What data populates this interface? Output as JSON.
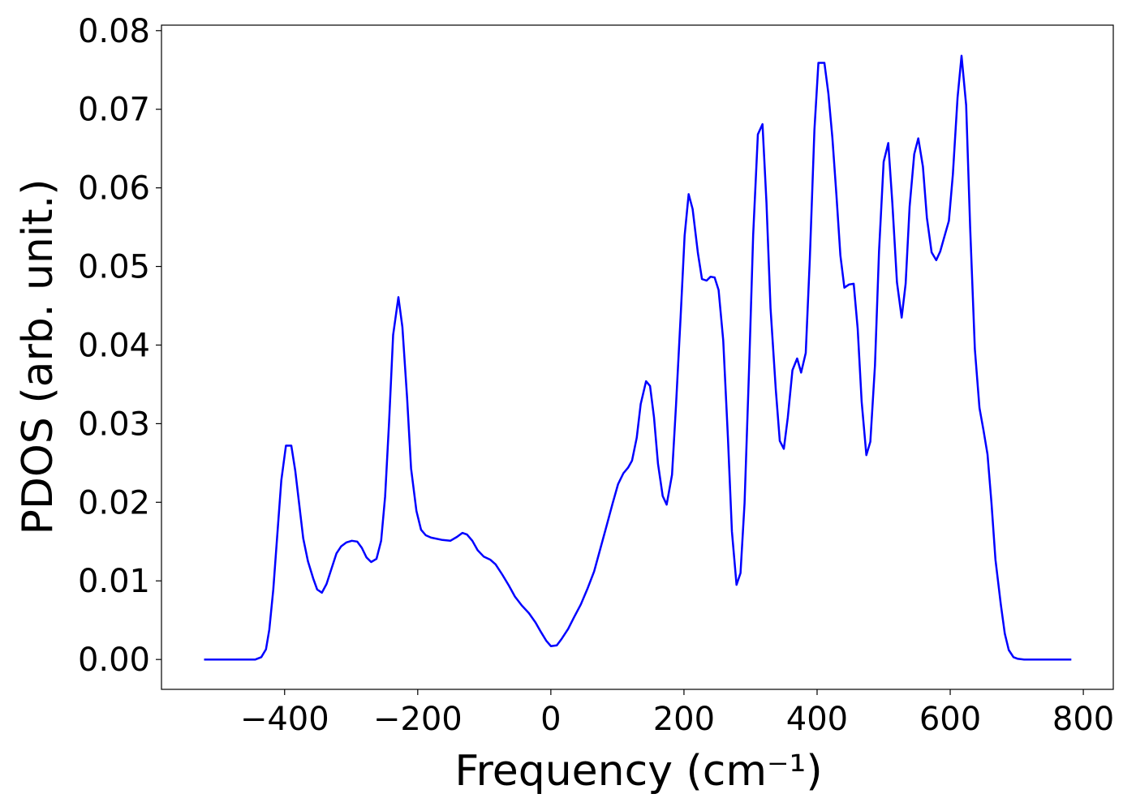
{
  "chart_data": {
    "type": "line",
    "xlabel": "Frequency (cm⁻¹)",
    "ylabel": "PDOS (arb. unit.)",
    "xlim": [
      -585,
      845
    ],
    "ylim": [
      -0.0038,
      0.0807
    ],
    "xticks": [
      {
        "value": -400,
        "label": "−400"
      },
      {
        "value": -200,
        "label": "−200"
      },
      0,
      200,
      400,
      600,
      800
    ],
    "yticks": [
      {
        "value": 0,
        "label": "0.00"
      },
      {
        "value": 0.01,
        "label": "0.01"
      },
      {
        "value": 0.02,
        "label": "0.02"
      },
      {
        "value": 0.03,
        "label": "0.03"
      },
      {
        "value": 0.04,
        "label": "0.04"
      },
      {
        "value": 0.05,
        "label": "0.05"
      },
      {
        "value": 0.06,
        "label": "0.06"
      },
      {
        "value": 0.07,
        "label": "0.07"
      },
      {
        "value": 0.08,
        "label": "0.08"
      }
    ],
    "grid": false,
    "series": [
      {
        "color": "#0000ff",
        "x": [
          -521,
          -444,
          -435,
          -428,
          -423,
          -417,
          -411,
          -405,
          -398,
          -390,
          -384,
          -378,
          -372,
          -365,
          -357,
          -351,
          -344,
          -337,
          -329,
          -322,
          -315,
          -307,
          -299,
          -291,
          -284,
          -277,
          -270,
          -262,
          -255,
          -249,
          -243,
          -237,
          -229,
          -223,
          -216,
          -210,
          -202,
          -195,
          -188,
          -180,
          -163,
          -151,
          -141,
          -133,
          -126,
          -118,
          -110,
          -101,
          -91,
          -83,
          -73,
          -63,
          -54,
          -44,
          -33,
          -23,
          -15,
          -7,
          0,
          9,
          16,
          26,
          35,
          45,
          55,
          65,
          74,
          84,
          93,
          101,
          109,
          116,
          122,
          129,
          135,
          143,
          149,
          155,
          161,
          168,
          174,
          182,
          188,
          195,
          201,
          207,
          213,
          221,
          227,
          234,
          240,
          246,
          252,
          259,
          266,
          272,
          279,
          285,
          291,
          298,
          304,
          311,
          318,
          324,
          330,
          338,
          344,
          350,
          356,
          363,
          370,
          376,
          383,
          389,
          396,
          402,
          411,
          417,
          423,
          429,
          435,
          441,
          448,
          455,
          461,
          467,
          474,
          480,
          487,
          493,
          500,
          507,
          513,
          520,
          527,
          533,
          539,
          546,
          552,
          559,
          565,
          572,
          579,
          585,
          591,
          598,
          604,
          611,
          617,
          624,
          630,
          637,
          644,
          650,
          656,
          662,
          668,
          676,
          682,
          688,
          695,
          701,
          711,
          782
        ],
        "values": [
          0,
          0,
          0.0003,
          0.0013,
          0.0038,
          0.0089,
          0.0158,
          0.0228,
          0.0272,
          0.0272,
          0.024,
          0.0197,
          0.0154,
          0.0125,
          0.0103,
          0.0089,
          0.0085,
          0.0096,
          0.0117,
          0.0135,
          0.0144,
          0.0149,
          0.0151,
          0.015,
          0.0142,
          0.013,
          0.0124,
          0.0128,
          0.0151,
          0.0207,
          0.0302,
          0.0413,
          0.0461,
          0.0423,
          0.0333,
          0.0243,
          0.0189,
          0.0165,
          0.0158,
          0.0155,
          0.0152,
          0.0151,
          0.0156,
          0.0161,
          0.0159,
          0.0151,
          0.0139,
          0.0131,
          0.0127,
          0.0121,
          0.0108,
          0.0094,
          0.008,
          0.0069,
          0.0059,
          0.0047,
          0.0035,
          0.0024,
          0.0017,
          0.0018,
          0.0026,
          0.0039,
          0.0054,
          0.007,
          0.009,
          0.0112,
          0.014,
          0.0171,
          0.0199,
          0.0223,
          0.0237,
          0.0244,
          0.0253,
          0.0282,
          0.0325,
          0.0354,
          0.0348,
          0.0308,
          0.0249,
          0.0208,
          0.0197,
          0.0235,
          0.0323,
          0.0436,
          0.0539,
          0.0592,
          0.0573,
          0.0517,
          0.0484,
          0.0482,
          0.0487,
          0.0486,
          0.047,
          0.0406,
          0.0282,
          0.0163,
          0.0095,
          0.011,
          0.0199,
          0.0374,
          0.054,
          0.0668,
          0.0681,
          0.0581,
          0.0447,
          0.0343,
          0.0278,
          0.0268,
          0.0308,
          0.0368,
          0.0383,
          0.0365,
          0.039,
          0.0509,
          0.0674,
          0.0759,
          0.0759,
          0.072,
          0.0664,
          0.0591,
          0.0514,
          0.0473,
          0.0477,
          0.0478,
          0.0421,
          0.0328,
          0.026,
          0.0277,
          0.0374,
          0.0519,
          0.0633,
          0.0657,
          0.0581,
          0.048,
          0.0435,
          0.0478,
          0.0576,
          0.0643,
          0.0663,
          0.0627,
          0.0562,
          0.0518,
          0.0508,
          0.0519,
          0.0537,
          0.0558,
          0.0617,
          0.0715,
          0.0768,
          0.0705,
          0.055,
          0.0395,
          0.032,
          0.0292,
          0.0261,
          0.0199,
          0.0127,
          0.007,
          0.0033,
          0.0012,
          0.0003,
          0.0001,
          0,
          0
        ]
      }
    ]
  }
}
